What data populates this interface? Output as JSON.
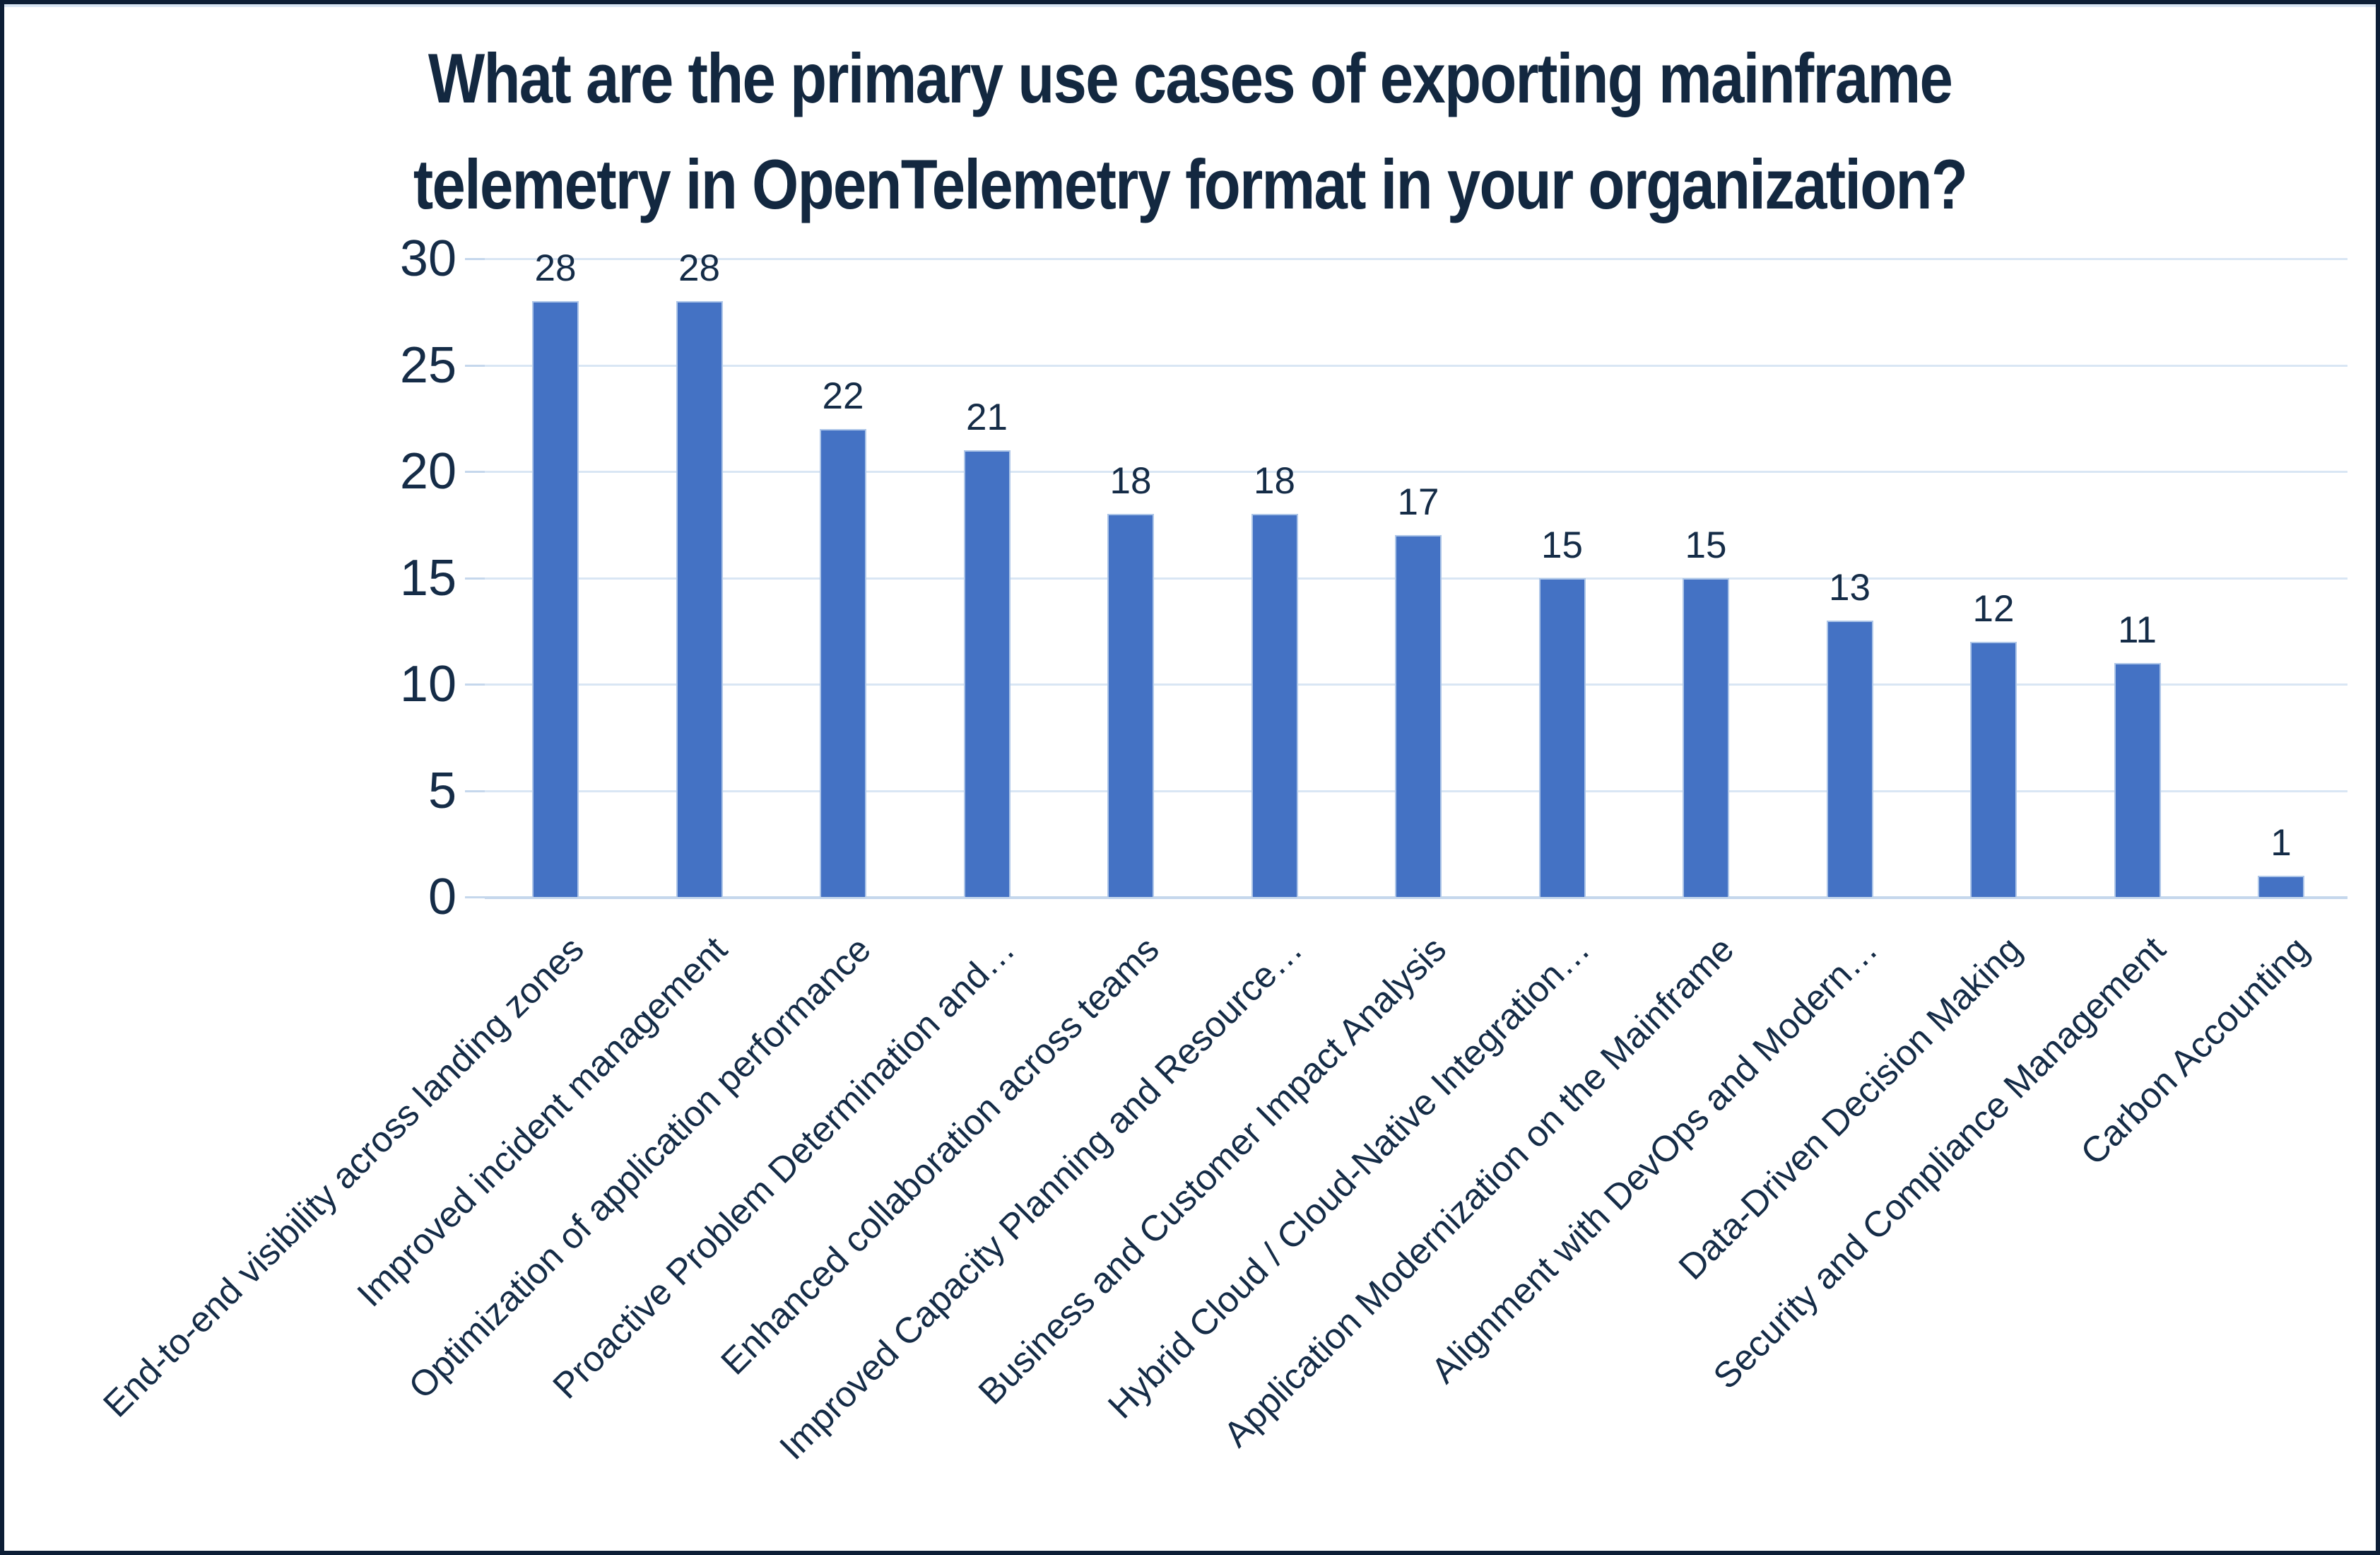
{
  "chart_data": {
    "type": "bar",
    "title": "What are the primary use cases of exporting mainframe telemetry in OpenTelemetry format in your organization?",
    "title_lines": [
      "What are the primary use cases of exporting mainframe",
      "telemetry in OpenTelemetry format in your organization?"
    ],
    "categories": [
      "End-to-end visibility across landing zones",
      "Improved incident management",
      "Optimization of application performance",
      "Proactive Problem Determination and…",
      "Enhanced collaboration across teams",
      "Improved Capacity Planning and Resource…",
      "Business and Customer Impact Analysis",
      "Hybrid Cloud / Cloud-Native Integration…",
      "Application Modernization on the Mainframe",
      "Alignment with DevOps and Modern…",
      "Data-Driven Decision Making",
      "Security and Compliance Management",
      "Carbon Accounting"
    ],
    "values": [
      28,
      28,
      22,
      21,
      18,
      18,
      17,
      15,
      15,
      13,
      12,
      11,
      1
    ],
    "xlabel": "",
    "ylabel": "",
    "ylim": [
      0,
      30
    ],
    "yticks": [
      0,
      5,
      10,
      15,
      20,
      25,
      30
    ],
    "grid": "horizontal",
    "legend": "none",
    "data_labels": true,
    "colors": {
      "bar": "#4472C4",
      "bar_border": "#AEC6E8",
      "text": "#152C47",
      "title": "#132840",
      "gridline": "#D9E6F4",
      "axis_line": "#C5D7EC",
      "frame_border": "#0D1E36",
      "background": "#FFFFFF"
    }
  }
}
